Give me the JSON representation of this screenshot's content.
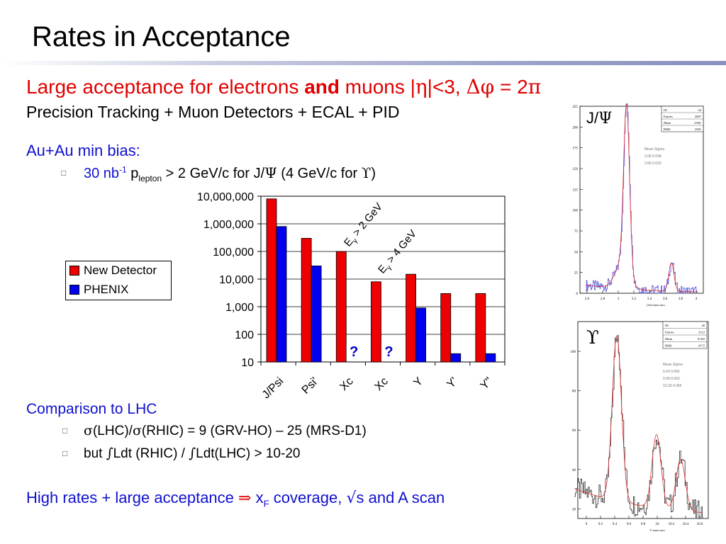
{
  "title": "Rates in Acceptance",
  "headline": {
    "part1": "Large acceptance for electrons ",
    "and": "and",
    "part2": " muons |",
    "eta": "η",
    "part3": "|<3, ",
    "delta": "Δφ",
    "part4": " = 2",
    "pi": "π"
  },
  "subhead": "Precision Tracking + Muon Detectors + ECAL + PID",
  "bias": {
    "heading": "Au+Au min bias:",
    "bullet_a": "30 nb",
    "bullet_sup": "-1",
    "bullet_b": " p",
    "bullet_sub": "lepton",
    "bullet_c": " > 2 GeV/c for J/",
    "psi": "Ψ",
    "bullet_d": " (4 GeV/c for ",
    "upsilon": "ϒ",
    "bullet_e": ")"
  },
  "colors": {
    "new_detector": "#ee0000",
    "phenix": "#0000ee",
    "blue_text": "#1010d0",
    "red_text": "#e00000"
  },
  "chart_data": {
    "type": "bar",
    "yscale": "log",
    "ylim": [
      10,
      10000000
    ],
    "yticks": [
      "10",
      "100",
      "1,000",
      "10,000",
      "100,000",
      "1,000,000",
      "10,000,000"
    ],
    "categories": [
      "J/Psi",
      "Psi'",
      "Xc",
      "Xc",
      "Y",
      "Y'",
      "Y\""
    ],
    "series": [
      {
        "name": "New Detector",
        "values": [
          8000000,
          300000,
          100000,
          8000,
          15000,
          3000,
          3000
        ]
      },
      {
        "name": "PHENIX",
        "values": [
          800000,
          30000,
          null,
          null,
          900,
          20,
          20
        ]
      }
    ],
    "question_marks": [
      "?",
      "?"
    ],
    "annotations": [
      {
        "prefix": "E",
        "sub": "γ",
        "text": " > 2 GeV"
      },
      {
        "prefix": "E",
        "sub": "γ",
        "text": " > 4 GeV"
      }
    ],
    "legend": "left"
  },
  "lhc": {
    "heading": "Comparison to LHC",
    "line1_sigma": "σ",
    "line1_a": "(LHC)/",
    "line1_sigma2": "σ",
    "line1_b": "(RHIC) = 9 (GRV-HO) – 25 (MRS-D1)",
    "line2_a": "but ",
    "integral": "∫",
    "line2_b": "Ldt (RHIC) / ",
    "integral2": "∫",
    "line2_c": "Ldt(LHC) > 10-20"
  },
  "closing": {
    "a": "High rates + large acceptance ",
    "arrow": "⇒",
    "b": " x",
    "sub": "F",
    "c": " coverage, ",
    "sqrt": "√",
    "d": "s and A scan"
  },
  "jpsi_plot": {
    "label_a": "J/",
    "label_psi": "Ψ",
    "stats": [
      "ID",
      "Entries",
      "Mean",
      "RMS"
    ],
    "stat_vals": [
      "24",
      "2067",
      "3.081",
      "2581"
    ],
    "fit_header": "Mean  Sigma",
    "fit_rows": [
      "3.08  0.038",
      "3.66  0.033"
    ],
    "xticks": [
      "2.6",
      "2.8",
      "3",
      "3.2",
      "3.4",
      "3.6",
      "3.8",
      "4"
    ],
    "yticks": [
      "225",
      "200",
      "175",
      "150",
      "125",
      "100",
      "75",
      "50",
      "25",
      "0"
    ],
    "xlabel": "(ee) mass mcs"
  },
  "ups_plot": {
    "label": "ϒ",
    "stats": [
      "ID",
      "Entries",
      "Mean",
      "RMS"
    ],
    "stat_vals": [
      "20",
      "2112",
      "9.592",
      "4172"
    ],
    "fit_header": "Mean  Sigma",
    "fit_rows": [
      "9.43  0.065",
      "9.99  0.063",
      "10.33  0.065"
    ],
    "xticks": [
      "9",
      "9.2",
      "9.4",
      "9.6",
      "9.8",
      "10",
      "10.2",
      "10.4",
      "10.6"
    ],
    "yticks": [
      "100",
      "80",
      "60",
      "40",
      "20"
    ],
    "xlabel": "Y mass mcs"
  }
}
